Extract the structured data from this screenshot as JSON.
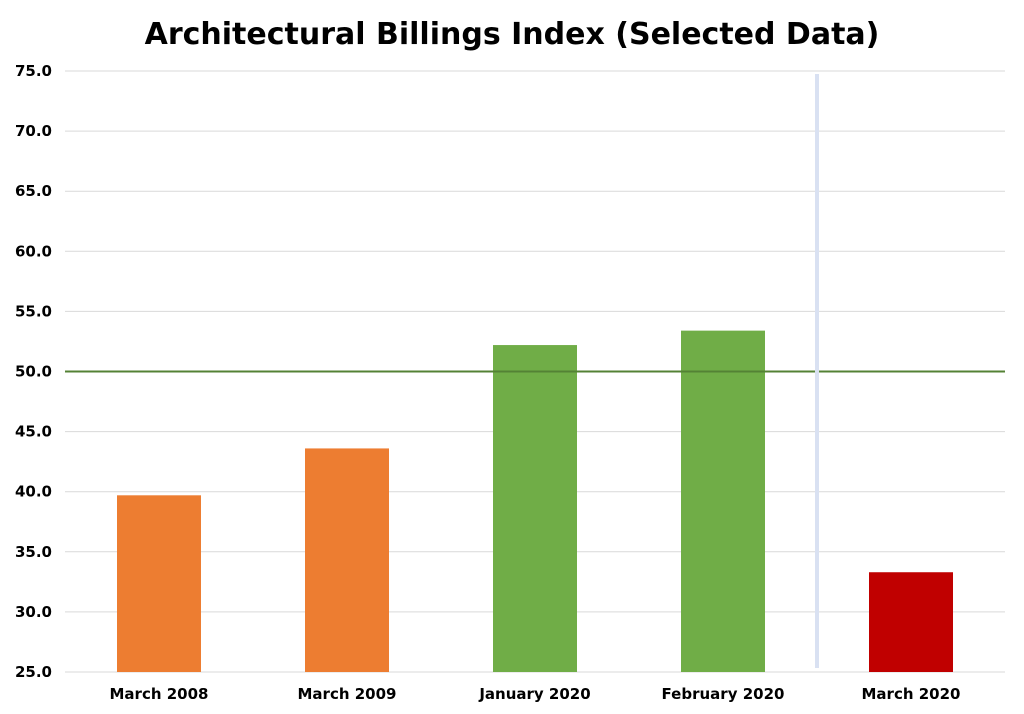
{
  "chart_data": {
    "type": "bar",
    "title": "Architectural Billings Index (Selected Data)",
    "xlabel": "",
    "ylabel": "",
    "categories": [
      "March 2008",
      "March 2009",
      "January 2020",
      "February 2020",
      "March 2020"
    ],
    "values": [
      39.7,
      43.6,
      52.2,
      53.4,
      33.3
    ],
    "bar_colors": [
      "#ED7D31",
      "#ED7D31",
      "#70AD47",
      "#70AD47",
      "#C00000"
    ],
    "ylim": [
      25,
      75
    ],
    "yticks": [
      "25.0",
      "30.0",
      "35.0",
      "40.0",
      "45.0",
      "50.0",
      "55.0",
      "60.0",
      "65.0",
      "70.0",
      "75.0"
    ],
    "reference_line": {
      "value": 50,
      "color": "#548235"
    },
    "separator": {
      "after_category_index": 3,
      "color": "#D9E1F2"
    },
    "grid": true,
    "gridline_color": "#D9D9D9",
    "legend": "none"
  }
}
